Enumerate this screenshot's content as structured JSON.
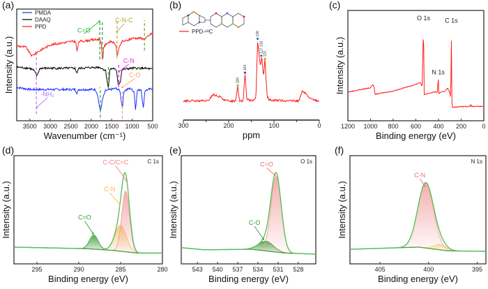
{
  "chart_data": [
    {
      "panel": "(a)",
      "type": "line",
      "xlabel": "Wavenumber (cm⁻¹)",
      "ylabel": "Intensity (a.u.)",
      "xlim": [
        3820,
        500
      ],
      "ylim": [
        0,
        100
      ],
      "xticks": [
        3500,
        3000,
        2500,
        2000,
        1500,
        1000,
        500
      ],
      "legend_position": "top-left",
      "grid": false,
      "series": [
        {
          "name": "PMDA",
          "color": "#1a2cff",
          "points": [
            [
              3820,
              30
            ],
            [
              3500,
              28
            ],
            [
              3000,
              28
            ],
            [
              2400,
              28
            ],
            [
              2350,
              25
            ],
            [
              2300,
              28
            ],
            [
              1900,
              28
            ],
            [
              1850,
              24
            ],
            [
              1780,
              8
            ],
            [
              1720,
              20
            ],
            [
              1650,
              27
            ],
            [
              1400,
              29
            ],
            [
              1300,
              27
            ],
            [
              1240,
              11
            ],
            [
              1200,
              27
            ],
            [
              1050,
              29
            ],
            [
              950,
              26
            ],
            [
              920,
              9
            ],
            [
              880,
              27
            ],
            [
              780,
              28
            ],
            [
              730,
              11
            ],
            [
              690,
              27
            ],
            [
              500,
              29
            ]
          ]
        },
        {
          "name": "DAAQ",
          "color": "#000000",
          "points": [
            [
              3820,
              48
            ],
            [
              3500,
              47
            ],
            [
              3400,
              45
            ],
            [
              3330,
              40
            ],
            [
              3250,
              47
            ],
            [
              2400,
              47
            ],
            [
              2350,
              43
            ],
            [
              2300,
              47
            ],
            [
              1800,
              48
            ],
            [
              1650,
              45
            ],
            [
              1580,
              28
            ],
            [
              1550,
              46
            ],
            [
              1450,
              47
            ],
            [
              1380,
              44
            ],
            [
              1340,
              32
            ],
            [
              1290,
              35
            ],
            [
              1250,
              46
            ],
            [
              1000,
              47
            ],
            [
              700,
              47
            ],
            [
              500,
              46
            ]
          ]
        },
        {
          "name": "PPD",
          "color": "#ff1a1a",
          "points": [
            [
              3820,
              67
            ],
            [
              3600,
              66
            ],
            [
              3450,
              58
            ],
            [
              3300,
              62
            ],
            [
              3000,
              68
            ],
            [
              2500,
              71
            ],
            [
              2380,
              71
            ],
            [
              2350,
              62
            ],
            [
              2300,
              71
            ],
            [
              1800,
              73
            ],
            [
              1760,
              70
            ],
            [
              1720,
              52
            ],
            [
              1700,
              66
            ],
            [
              1600,
              70
            ],
            [
              1500,
              71
            ],
            [
              1400,
              68
            ],
            [
              1370,
              58
            ],
            [
              1330,
              64
            ],
            [
              1250,
              71
            ],
            [
              1100,
              72
            ],
            [
              1000,
              74
            ],
            [
              800,
              74
            ],
            [
              700,
              73
            ],
            [
              500,
              79
            ]
          ]
        }
      ],
      "markers": [
        {
          "x": 3340,
          "range": [
            6,
            60
          ],
          "color": "#c77dff"
        },
        {
          "x": 1790,
          "range": [
            55,
            90
          ],
          "color": "#4caf50"
        },
        {
          "x": 1730,
          "range": [
            55,
            90
          ],
          "color": "#4caf50"
        },
        {
          "x": 1370,
          "range": [
            56,
            90
          ],
          "color": "#b5b53a"
        },
        {
          "x": 700,
          "range": [
            63,
            90
          ],
          "color": "#7cb342"
        },
        {
          "x": 1580,
          "range": [
            28,
            50
          ],
          "color": "#4caf50"
        },
        {
          "x": 1330,
          "range": [
            30,
            52
          ],
          "color": "#e040fb"
        },
        {
          "x": 1780,
          "range": [
            3,
            30
          ],
          "color": "#4caf50"
        },
        {
          "x": 1240,
          "range": [
            2,
            26
          ],
          "color": "#ffab70"
        }
      ],
      "annotations": [
        {
          "text": "C=O",
          "color": "#2db52d",
          "at": [
            2180,
            79
          ],
          "to": [
            1800,
            89
          ]
        },
        {
          "text": "C-N-C",
          "color": "#a8a82a",
          "at": [
            1200,
            88
          ],
          "to": [
            1370,
            80
          ]
        },
        {
          "text": "C-N",
          "color": "#e62ee6",
          "at": [
            1080,
            52
          ],
          "to": [
            1320,
            44
          ]
        },
        {
          "text": "C-O",
          "color": "#ffa060",
          "at": [
            940,
            39
          ],
          "to": [
            1240,
            30
          ]
        },
        {
          "text": "-NH₂",
          "color": "#b070f0",
          "at": [
            3070,
            22
          ],
          "to": [
            3330,
            12
          ]
        }
      ]
    },
    {
      "panel": "(b)",
      "type": "line",
      "xlabel": "ppm",
      "ylabel": "",
      "xlim": [
        300,
        0
      ],
      "ylim": [
        0,
        100
      ],
      "xticks": [
        300,
        200,
        100,
        0
      ],
      "minor_xticks": [
        250,
        150,
        50
      ],
      "legend_position": "top-left",
      "series": [
        {
          "name": "PPD-¹³C",
          "color": "#ff1a1a",
          "points": [
            [
              300,
              18
            ],
            [
              245,
              18
            ],
            [
              235,
              24
            ],
            [
              220,
              22
            ],
            [
              205,
              18
            ],
            [
              185,
              18
            ],
            [
              180,
              32
            ],
            [
              176,
              18
            ],
            [
              168,
              18
            ],
            [
              164,
              44
            ],
            [
              160,
              20
            ],
            [
              150,
              18
            ],
            [
              140,
              20
            ],
            [
              136,
              76
            ],
            [
              133,
              62
            ],
            [
              130,
              50
            ],
            [
              127,
              59
            ],
            [
              123,
              40
            ],
            [
              120,
              57
            ],
            [
              115,
              22
            ],
            [
              110,
              19
            ],
            [
              60,
              18
            ],
            [
              45,
              18
            ],
            [
              38,
              27
            ],
            [
              30,
              25
            ],
            [
              20,
              20
            ],
            [
              0,
              18
            ]
          ]
        }
      ],
      "peaks": [
        {
          "ppm": 180,
          "label": "180",
          "height": 32,
          "color": "#7bd23c"
        },
        {
          "ppm": 164,
          "label": "164",
          "height": 44,
          "color": "#7030a0"
        },
        {
          "ppm": 136,
          "label": "136",
          "height": 76,
          "color": "#1f77e0"
        },
        {
          "ppm": 128,
          "label": "127 133",
          "height": 60,
          "color": "#1f77e0"
        },
        {
          "ppm": 120,
          "label": "120",
          "height": 57,
          "color": "#ff8c1a"
        }
      ]
    },
    {
      "panel": "(c)",
      "type": "line",
      "xlabel": "Binding energy (eV)",
      "ylabel": "Intensity (a.u.)",
      "xlim": [
        1200,
        0
      ],
      "ylim": [
        0,
        100
      ],
      "xticks": [
        1200,
        1000,
        800,
        600,
        400,
        200,
        0
      ],
      "series": [
        {
          "name": "",
          "color": "#ff1a1a",
          "points": [
            [
              1200,
              26
            ],
            [
              1100,
              28
            ],
            [
              1000,
              30
            ],
            [
              980,
              33
            ],
            [
              970,
              31
            ],
            [
              960,
              24
            ],
            [
              800,
              27
            ],
            [
              600,
              33
            ],
            [
              560,
              35
            ],
            [
              545,
              30
            ],
            [
              532,
              89
            ],
            [
              528,
              24
            ],
            [
              520,
              24
            ],
            [
              440,
              26
            ],
            [
              410,
              26
            ],
            [
              402,
              39
            ],
            [
              398,
              25
            ],
            [
              340,
              27
            ],
            [
              320,
              30
            ],
            [
              300,
              25
            ],
            [
              292,
              20
            ],
            [
              287,
              87
            ],
            [
              283,
              20
            ],
            [
              280,
              12
            ],
            [
              200,
              13
            ],
            [
              120,
              13
            ],
            [
              115,
              15
            ],
            [
              110,
              13
            ],
            [
              0,
              13
            ]
          ]
        }
      ],
      "peak_labels": [
        {
          "text": "O 1s",
          "at": [
            532,
            91
          ]
        },
        {
          "text": "N 1s",
          "at": [
            402,
            42
          ]
        },
        {
          "text": "C 1s",
          "at": [
            287,
            89
          ]
        }
      ]
    },
    {
      "panel": "(d)",
      "type": "area",
      "xlabel": "Binding energy (eV)",
      "ylabel": "Intensity (a.u.)",
      "xlim": [
        297.75,
        280
      ],
      "ylim": [
        0,
        100
      ],
      "xticks": [
        295,
        290,
        285,
        280
      ],
      "corner_label": "C 1s",
      "envelope_color": "#5cbf5c",
      "background": [
        [
          297.75,
          15.5
        ],
        [
          289,
          14
        ],
        [
          286,
          12.5
        ],
        [
          283,
          10
        ],
        [
          280,
          10
        ]
      ],
      "components": [
        {
          "name": "C=O",
          "center": 288.2,
          "height": 13,
          "fwhm": 1.2,
          "color": "#3a9a3a"
        },
        {
          "name": "C-N",
          "center": 285.0,
          "height": 24,
          "fwhm": 1.6,
          "color": "#f5c26b"
        },
        {
          "name": "C-C/C=C",
          "center": 284.4,
          "height": 56,
          "fwhm": 1.1,
          "color": "#f4a0a0"
        }
      ],
      "annotations": [
        {
          "text": "C-C/C=C",
          "color": "#f08080",
          "at": [
            285.6,
            92
          ],
          "to": [
            284.3,
            77
          ]
        },
        {
          "text": "C-N",
          "color": "#f5b942",
          "at": [
            286.3,
            67
          ],
          "to": [
            285.1,
            55
          ]
        },
        {
          "text": "C=O",
          "color": "#2e9e2e",
          "at": [
            289.3,
            41
          ],
          "to": [
            288.3,
            28
          ]
        }
      ]
    },
    {
      "panel": "(e)",
      "type": "area",
      "xlabel": "Binding energy (eV)",
      "ylabel": "Intensity (a.u.)",
      "xlim": [
        545.4,
        525.4
      ],
      "ylim": [
        0,
        100
      ],
      "xticks": [
        543,
        540,
        537,
        534,
        531,
        528
      ],
      "corner_label": "O 1s",
      "envelope_color": "#5cbf5c",
      "background": [
        [
          545.4,
          15
        ],
        [
          542,
          13
        ],
        [
          535,
          13.5
        ],
        [
          530,
          10
        ],
        [
          525.4,
          9
        ]
      ],
      "components": [
        {
          "name": "C-O",
          "center": 532.8,
          "height": 9,
          "fwhm": 2.6,
          "color": "#3a9a3a"
        },
        {
          "name": "C=O",
          "center": 531.3,
          "height": 70,
          "fwhm": 1.8,
          "color": "#f4a0a0"
        }
      ],
      "annotations": [
        {
          "text": "C=O",
          "color": "#f07070",
          "at": [
            532.7,
            90
          ],
          "to": [
            531.5,
            82
          ]
        },
        {
          "text": "C-O",
          "color": "#2e9e2e",
          "at": [
            534.5,
            36
          ],
          "to": [
            533.2,
            23
          ]
        }
      ]
    },
    {
      "panel": "(f)",
      "type": "area",
      "xlabel": "Binding energy (eV)",
      "ylabel": "Intensity (a.u.)",
      "xlim": [
        408.1,
        394.1
      ],
      "ylim": [
        0,
        100
      ],
      "xticks": [
        405,
        400,
        395
      ],
      "corner_label": "N 1s",
      "envelope_color": "#5cbf5c",
      "background": [
        [
          408.1,
          13.5
        ],
        [
          401,
          15.5
        ],
        [
          398,
          12
        ],
        [
          394.1,
          11.6
        ]
      ],
      "components": [
        {
          "name": "",
          "center": 398.8,
          "height": 5,
          "fwhm": 1.6,
          "color": "#f5e08a"
        },
        {
          "name": "C-N",
          "center": 400.3,
          "height": 60,
          "fwhm": 1.9,
          "color": "#f4a0a0"
        }
      ],
      "annotations": [
        {
          "text": "C-N",
          "color": "#f07070",
          "at": [
            400.9,
            80
          ],
          "to": [
            400.4,
            72
          ]
        }
      ]
    }
  ]
}
